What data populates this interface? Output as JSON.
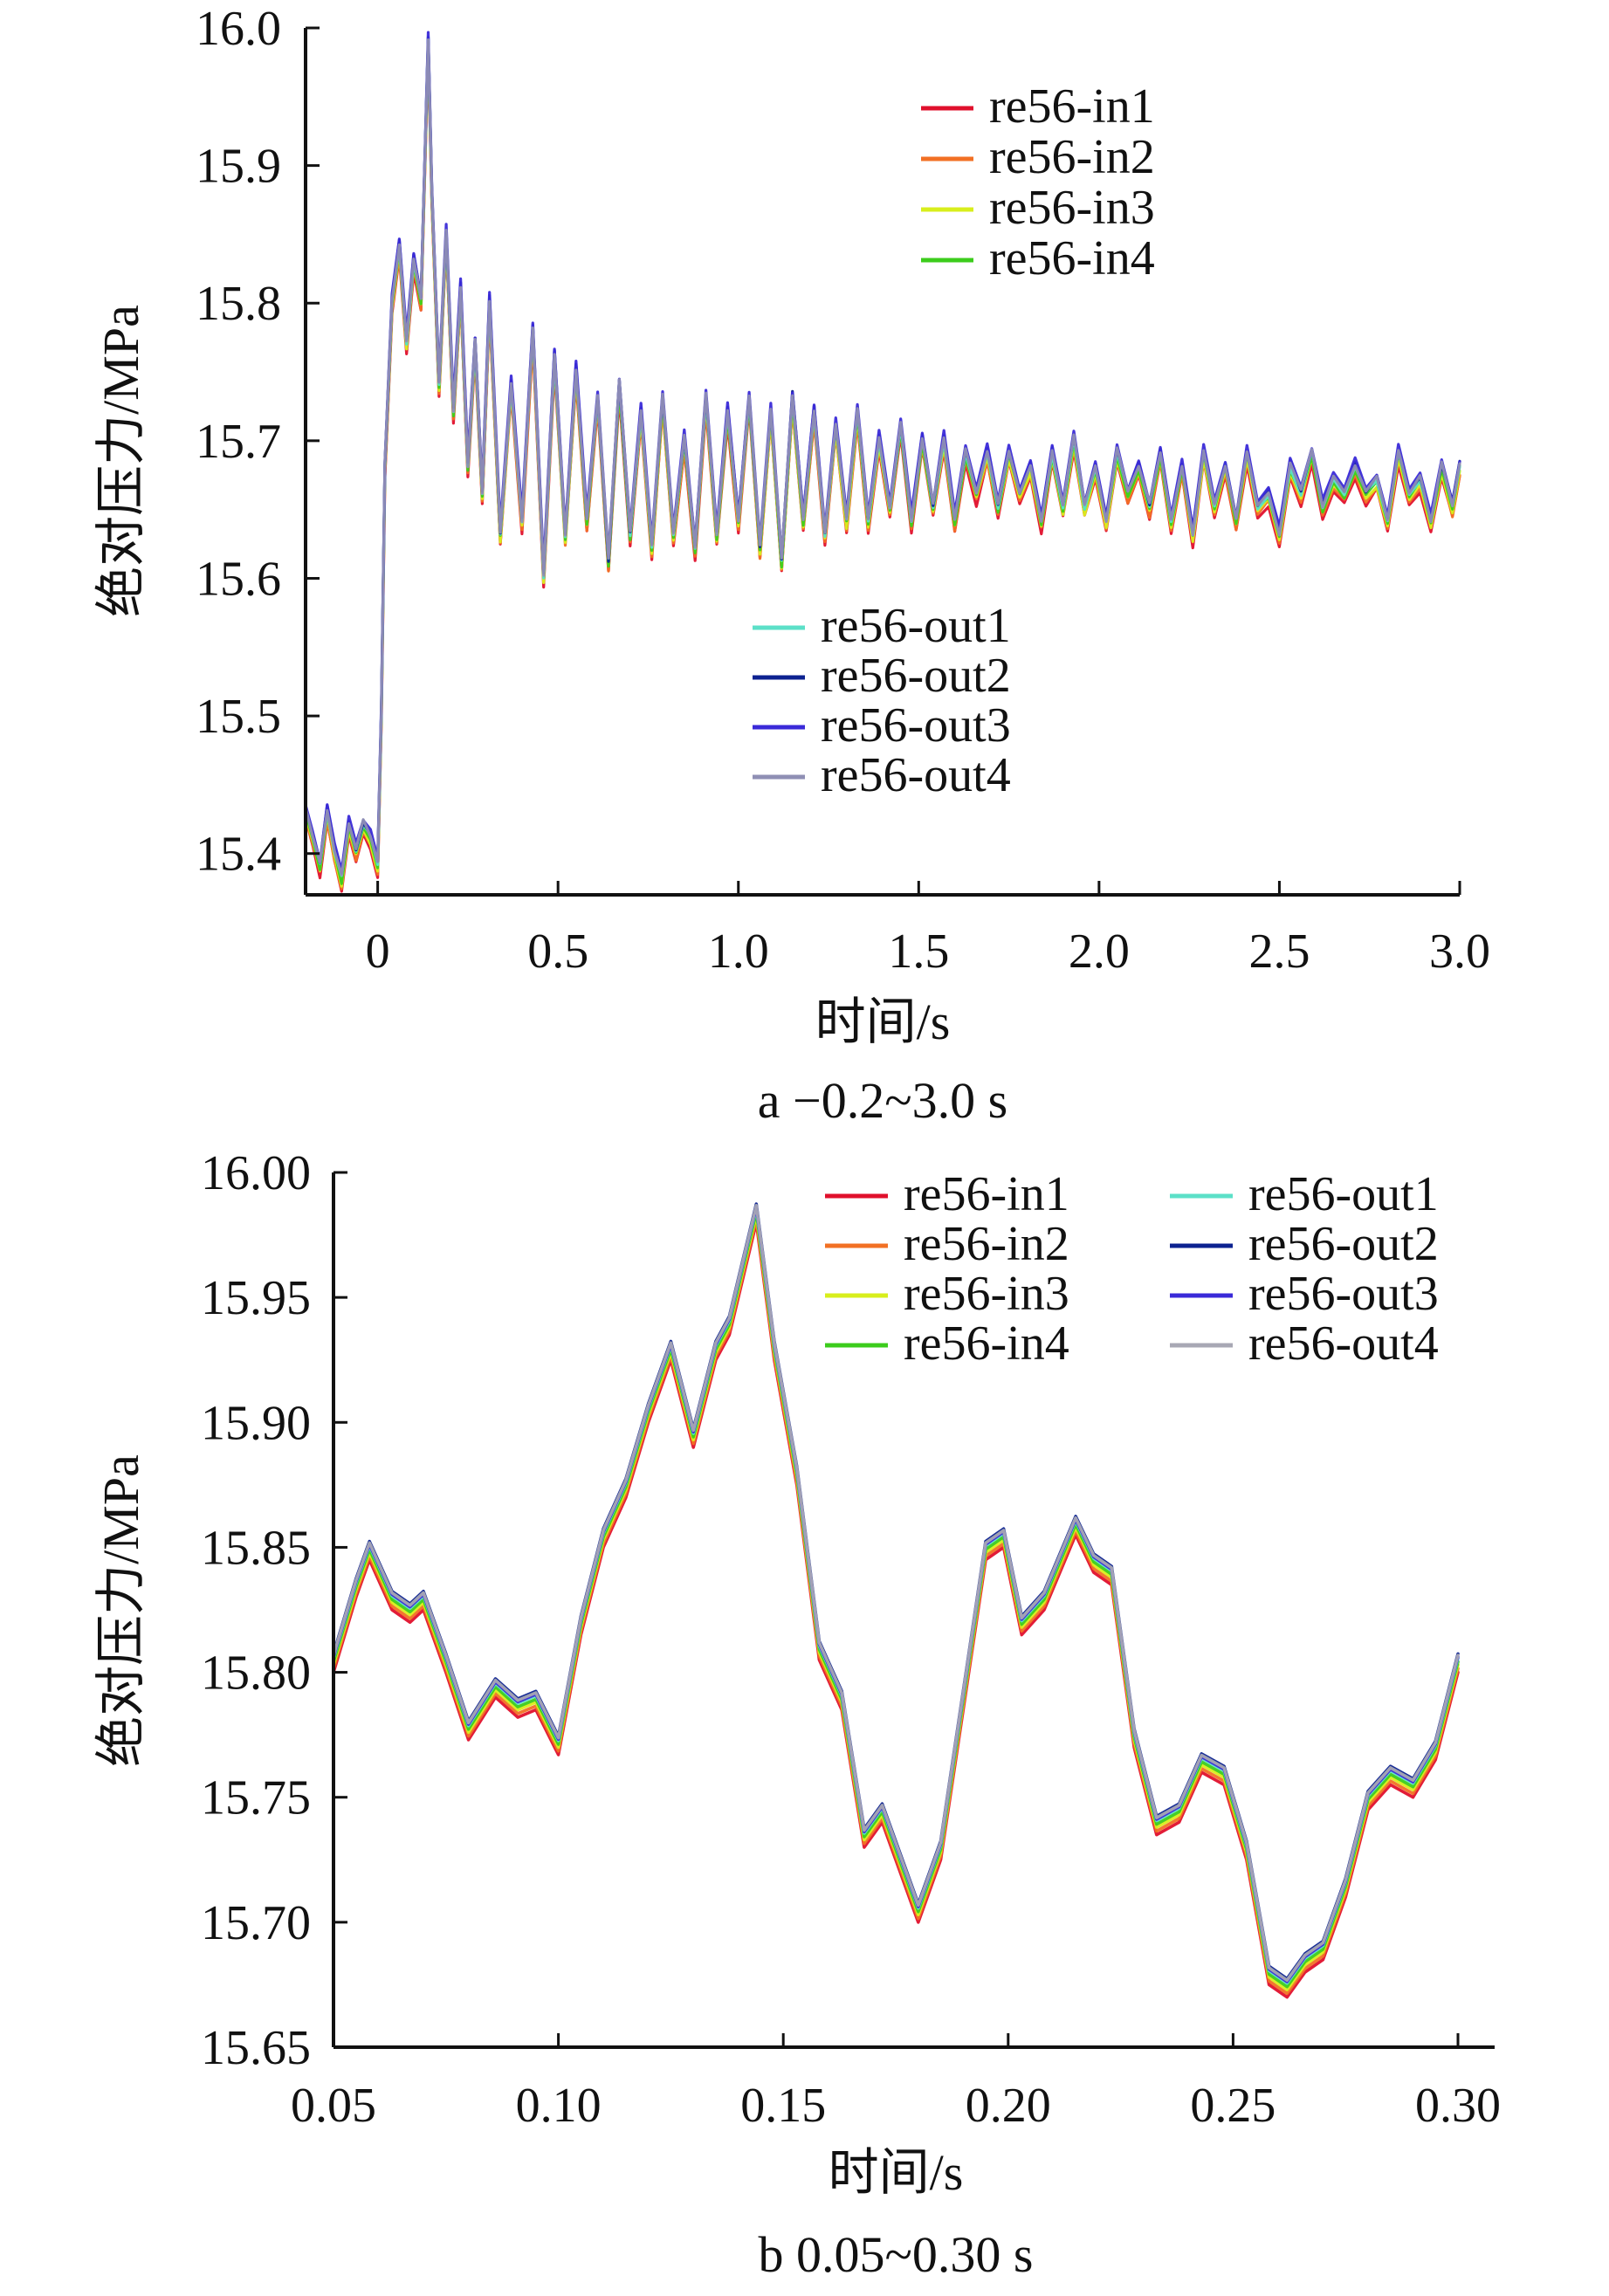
{
  "chart_data": [
    {
      "type": "line",
      "title": "",
      "caption": "a  −0.2~3.0 s",
      "xlabel": "时间/s",
      "ylabel": "绝对压力/MPa",
      "xlim": [
        -0.2,
        3.0
      ],
      "ylim": [
        15.37,
        16.0
      ],
      "xticks": [
        0,
        0.5,
        1.0,
        1.5,
        2.0,
        2.5,
        3.0
      ],
      "xtick_labels": [
        "0",
        "0.5",
        "1.0",
        "1.5",
        "2.0",
        "2.5",
        "3.0"
      ],
      "yticks": [
        15.4,
        15.5,
        15.6,
        15.7,
        15.8,
        15.9,
        16.0
      ],
      "ytick_labels": [
        "15.4",
        "15.5",
        "15.6",
        "15.7",
        "15.8",
        "15.9",
        "16.0"
      ],
      "legend_groups": [
        {
          "position": "upper-right",
          "entries": [
            0,
            1,
            2,
            3
          ]
        },
        {
          "position": "lower-middle",
          "entries": [
            4,
            5,
            6,
            7
          ]
        }
      ],
      "series": [
        {
          "name": "re56-in1",
          "color": "#e0102c",
          "offset": -0.006
        },
        {
          "name": "re56-in2",
          "color": "#f27024",
          "offset": -0.004
        },
        {
          "name": "re56-in3",
          "color": "#d8ee1c",
          "offset": -0.002
        },
        {
          "name": "re56-in4",
          "color": "#3ccc1c",
          "offset": 0.0
        },
        {
          "name": "re56-out1",
          "color": "#5ce0c8",
          "offset": 0.002
        },
        {
          "name": "re56-out2",
          "color": "#0c2290",
          "offset": 0.004
        },
        {
          "name": "re56-out3",
          "color": "#3a2ad8",
          "offset": 0.006
        },
        {
          "name": "re56-out4",
          "color": "#8f8fb4",
          "offset": 0.003
        }
      ],
      "x": [
        -0.2,
        -0.18,
        -0.16,
        -0.14,
        -0.12,
        -0.1,
        -0.08,
        -0.06,
        -0.04,
        -0.02,
        0.0,
        0.01,
        0.02,
        0.04,
        0.06,
        0.08,
        0.1,
        0.12,
        0.14,
        0.15,
        0.17,
        0.19,
        0.21,
        0.23,
        0.25,
        0.27,
        0.29,
        0.31,
        0.34,
        0.37,
        0.4,
        0.43,
        0.46,
        0.49,
        0.52,
        0.55,
        0.58,
        0.61,
        0.64,
        0.67,
        0.7,
        0.73,
        0.76,
        0.79,
        0.82,
        0.85,
        0.88,
        0.91,
        0.94,
        0.97,
        1.0,
        1.03,
        1.06,
        1.09,
        1.12,
        1.15,
        1.18,
        1.21,
        1.24,
        1.27,
        1.3,
        1.33,
        1.36,
        1.39,
        1.42,
        1.45,
        1.48,
        1.51,
        1.54,
        1.57,
        1.6,
        1.63,
        1.66,
        1.69,
        1.72,
        1.75,
        1.78,
        1.81,
        1.84,
        1.87,
        1.9,
        1.93,
        1.96,
        1.99,
        2.02,
        2.05,
        2.08,
        2.11,
        2.14,
        2.17,
        2.2,
        2.23,
        2.26,
        2.29,
        2.32,
        2.35,
        2.38,
        2.41,
        2.44,
        2.47,
        2.5,
        2.53,
        2.56,
        2.59,
        2.62,
        2.65,
        2.68,
        2.71,
        2.74,
        2.77,
        2.8,
        2.83,
        2.86,
        2.89,
        2.92,
        2.95,
        2.98,
        3.0
      ],
      "y": [
        15.43,
        15.41,
        15.39,
        15.43,
        15.4,
        15.38,
        15.42,
        15.4,
        15.42,
        15.41,
        15.39,
        15.5,
        15.68,
        15.8,
        15.84,
        15.77,
        15.83,
        15.8,
        15.99,
        15.88,
        15.74,
        15.85,
        15.72,
        15.81,
        15.68,
        15.77,
        15.66,
        15.8,
        15.63,
        15.74,
        15.64,
        15.78,
        15.6,
        15.76,
        15.63,
        15.75,
        15.64,
        15.73,
        15.61,
        15.74,
        15.63,
        15.72,
        15.62,
        15.73,
        15.63,
        15.7,
        15.62,
        15.73,
        15.63,
        15.72,
        15.64,
        15.73,
        15.62,
        15.72,
        15.61,
        15.73,
        15.64,
        15.72,
        15.63,
        15.71,
        15.64,
        15.72,
        15.64,
        15.7,
        15.65,
        15.71,
        15.64,
        15.7,
        15.65,
        15.7,
        15.64,
        15.69,
        15.66,
        15.69,
        15.65,
        15.69,
        15.66,
        15.68,
        15.64,
        15.69,
        15.65,
        15.7,
        15.65,
        15.68,
        15.64,
        15.69,
        15.66,
        15.68,
        15.65,
        15.69,
        15.64,
        15.68,
        15.63,
        15.69,
        15.65,
        15.68,
        15.64,
        15.69,
        15.65,
        15.66,
        15.63,
        15.68,
        15.66,
        15.69,
        15.65,
        15.67,
        15.66,
        15.68,
        15.66,
        15.67,
        15.64,
        15.69,
        15.66,
        15.67,
        15.64,
        15.68,
        15.65,
        15.68
      ]
    },
    {
      "type": "line",
      "title": "",
      "caption": "b  0.05~0.30 s",
      "xlabel": "时间/s",
      "ylabel": "绝对压力/MPa",
      "xlim": [
        0.05,
        0.3
      ],
      "ylim": [
        15.65,
        16.0
      ],
      "xticks": [
        0.05,
        0.1,
        0.15,
        0.2,
        0.25,
        0.3
      ],
      "xtick_labels": [
        "0.05",
        "0.10",
        "0.15",
        "0.20",
        "0.25",
        "0.30"
      ],
      "yticks": [
        15.65,
        15.7,
        15.75,
        15.8,
        15.85,
        15.9,
        15.95,
        16.0
      ],
      "ytick_labels": [
        "15.65",
        "15.70",
        "15.75",
        "15.80",
        "15.85",
        "15.90",
        "15.95",
        "16.00"
      ],
      "legend_groups": [
        {
          "position": "top-center",
          "entries": [
            0,
            1,
            2,
            3
          ]
        },
        {
          "position": "top-right",
          "entries": [
            4,
            5,
            6,
            7
          ]
        }
      ],
      "series": [
        {
          "name": "re56-in1",
          "color": "#e0102c",
          "offset": -0.005
        },
        {
          "name": "re56-in2",
          "color": "#f27024",
          "offset": -0.0035
        },
        {
          "name": "re56-in3",
          "color": "#d8ee1c",
          "offset": -0.002
        },
        {
          "name": "re56-in4",
          "color": "#3ccc1c",
          "offset": -0.0008
        },
        {
          "name": "re56-out1",
          "color": "#5ce0c8",
          "offset": 0.0006
        },
        {
          "name": "re56-out2",
          "color": "#0c2290",
          "offset": 0.0024
        },
        {
          "name": "re56-out3",
          "color": "#3a2ad8",
          "offset": 0.0012
        },
        {
          "name": "re56-out4",
          "color": "#a8a8b4",
          "offset": 0.0018
        }
      ],
      "x": [
        0.05,
        0.055,
        0.058,
        0.063,
        0.067,
        0.07,
        0.075,
        0.08,
        0.086,
        0.091,
        0.095,
        0.1,
        0.105,
        0.11,
        0.115,
        0.12,
        0.125,
        0.13,
        0.135,
        0.138,
        0.144,
        0.148,
        0.153,
        0.158,
        0.163,
        0.168,
        0.172,
        0.175,
        0.18,
        0.185,
        0.19,
        0.195,
        0.199,
        0.203,
        0.208,
        0.215,
        0.219,
        0.223,
        0.228,
        0.233,
        0.238,
        0.243,
        0.248,
        0.253,
        0.258,
        0.262,
        0.266,
        0.27,
        0.275,
        0.28,
        0.285,
        0.29,
        0.295,
        0.3
      ],
      "y": [
        15.805,
        15.835,
        15.85,
        15.83,
        15.825,
        15.83,
        15.805,
        15.778,
        15.795,
        15.787,
        15.79,
        15.772,
        15.82,
        15.855,
        15.875,
        15.905,
        15.93,
        15.895,
        15.93,
        15.94,
        15.985,
        15.93,
        15.88,
        15.81,
        15.79,
        15.735,
        15.745,
        15.73,
        15.705,
        15.73,
        15.79,
        15.85,
        15.855,
        15.82,
        15.83,
        15.86,
        15.845,
        15.84,
        15.775,
        15.74,
        15.745,
        15.765,
        15.76,
        15.73,
        15.68,
        15.675,
        15.685,
        15.69,
        15.715,
        15.75,
        15.76,
        15.755,
        15.77,
        15.805
      ]
    }
  ]
}
